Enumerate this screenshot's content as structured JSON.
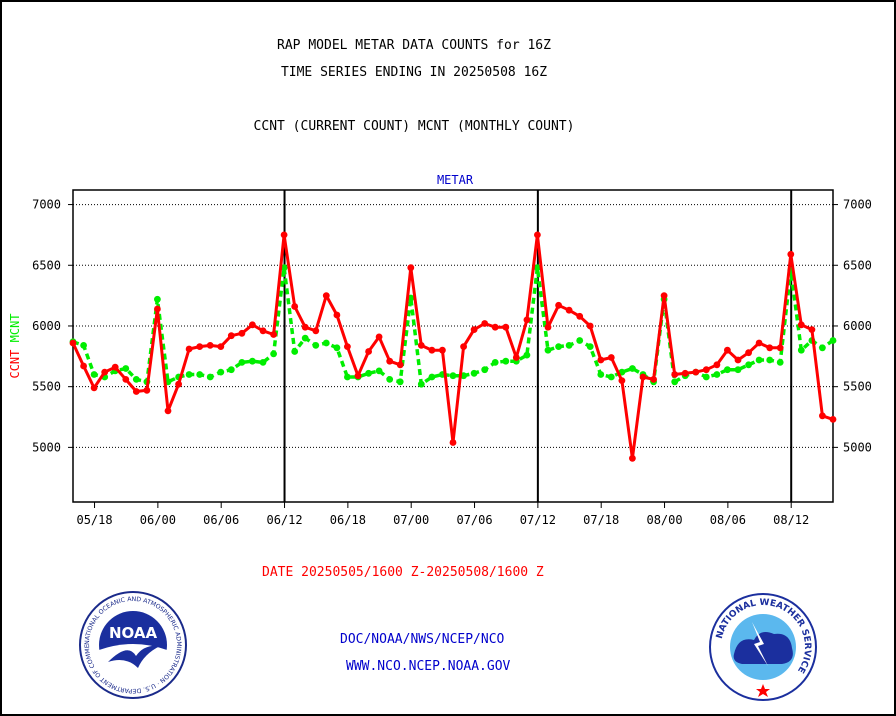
{
  "header": {
    "title_line1": "RAP MODEL METAR DATA COUNTS for 16Z",
    "title_line2": "TIME SERIES ENDING IN 20250508 16Z",
    "subtitle": "CCNT (CURRENT COUNT) MCNT (MONTHLY COUNT)"
  },
  "footer": {
    "date_range": "DATE 20250505/1600 Z-20250508/1600 Z",
    "link1": "DOC/NOAA/NWS/NCEP/NCO",
    "link2": "WWW.NCO.NCEP.NOAA.GOV"
  },
  "logos": {
    "noaa_text": "NOAA",
    "noaa_ring": "NATIONAL OCEANIC AND ATMOSPHERIC ADMINISTRATION · U.S. DEPARTMENT OF COMMERCE ·",
    "nws_ring": "NATIONAL WEATHER SERVICE"
  },
  "colors": {
    "ccnt": "#ff0000",
    "mcnt": "#00ee00",
    "title": "#0000cc",
    "text": "#000000"
  },
  "chart_data": {
    "type": "line",
    "title": "METAR",
    "ylabel_parts": [
      {
        "text": "CCNT",
        "color": "#ff0000"
      },
      {
        "text": "MCNT",
        "color": "#00ee00"
      }
    ],
    "ylim": [
      4550,
      7120
    ],
    "xlim": [
      0,
      60
    ],
    "yticks": [
      5000,
      5500,
      6000,
      6500,
      7000
    ],
    "ytick_labels": [
      "5000",
      "5500",
      "6000",
      "6500",
      "7000"
    ],
    "xtick_positions": [
      1.7,
      6.7,
      11.7,
      16.7,
      21.7,
      26.7,
      31.7,
      36.7,
      41.7,
      46.7,
      51.7,
      56.7
    ],
    "xtick_labels": [
      "05/18",
      "06/00",
      "06/06",
      "06/12",
      "06/18",
      "07/00",
      "07/06",
      "07/12",
      "07/18",
      "08/00",
      "08/06",
      "08/12"
    ],
    "day_boundaries": [
      16.7,
      36.7,
      56.7
    ],
    "grid": true,
    "series": [
      {
        "name": "CCNT",
        "color": "#ff0000",
        "values": [
          5860,
          5670,
          5490,
          5620,
          5660,
          5560,
          5460,
          5470,
          6140,
          5300,
          5520,
          5810,
          5830,
          5840,
          5830,
          5920,
          5940,
          6010,
          5960,
          5930,
          6750,
          6160,
          5990,
          5960,
          6250,
          6090,
          5830,
          5590,
          5790,
          5910,
          5710,
          5680,
          6480,
          5840,
          5800,
          5800,
          5040,
          5830,
          5970,
          6020,
          5990,
          5990,
          5740,
          6050,
          6750,
          5990,
          6170,
          6130,
          6080,
          6000,
          5720,
          5740,
          5550,
          4910,
          5580,
          5560,
          6250,
          5600,
          5610,
          5620,
          5640,
          5680,
          5800,
          5720,
          5780,
          5860,
          5820,
          5820,
          6590,
          6010,
          5970,
          5260,
          5230
        ]
      },
      {
        "name": "MCNT",
        "color": "#00ee00",
        "values": [
          5870,
          5840,
          5600,
          5580,
          5630,
          5650,
          5560,
          5540,
          6220,
          5540,
          5580,
          5600,
          5600,
          5580,
          5620,
          5640,
          5700,
          5710,
          5700,
          5770,
          6480,
          5790,
          5900,
          5840,
          5860,
          5820,
          5580,
          5580,
          5610,
          5630,
          5560,
          5540,
          6230,
          5520,
          5580,
          5600,
          5590,
          5590,
          5610,
          5640,
          5700,
          5710,
          5710,
          5760,
          6480,
          5800,
          5830,
          5840,
          5880,
          5830,
          5600,
          5580,
          5620,
          5650,
          5600,
          5540,
          6220,
          5540,
          5590,
          5620,
          5580,
          5600,
          5640,
          5640,
          5680,
          5720,
          5720,
          5700,
          6460,
          5800,
          5880,
          5820,
          5880
        ]
      }
    ]
  }
}
